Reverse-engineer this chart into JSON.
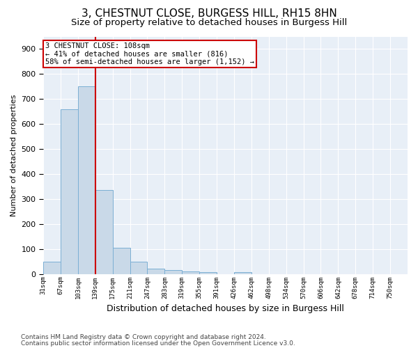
{
  "title1": "3, CHESTNUT CLOSE, BURGESS HILL, RH15 8HN",
  "title2": "Size of property relative to detached houses in Burgess Hill",
  "xlabel": "Distribution of detached houses by size in Burgess Hill",
  "ylabel": "Number of detached properties",
  "footnote1": "Contains HM Land Registry data © Crown copyright and database right 2024.",
  "footnote2": "Contains public sector information licensed under the Open Government Licence v3.0.",
  "bin_labels": [
    "31sqm",
    "67sqm",
    "103sqm",
    "139sqm",
    "175sqm",
    "211sqm",
    "247sqm",
    "283sqm",
    "319sqm",
    "355sqm",
    "391sqm",
    "426sqm",
    "462sqm",
    "498sqm",
    "534sqm",
    "570sqm",
    "606sqm",
    "642sqm",
    "678sqm",
    "714sqm",
    "750sqm"
  ],
  "bar_values": [
    50,
    660,
    750,
    335,
    105,
    50,
    22,
    15,
    10,
    8,
    0,
    8,
    0,
    0,
    0,
    0,
    0,
    0,
    0,
    0,
    0
  ],
  "bar_color": "#c9d9e8",
  "bar_edge_color": "#7bafd4",
  "vline_color": "#cc0000",
  "vline_x": 2.5,
  "annotation_line1": "3 CHESTNUT CLOSE: 108sqm",
  "annotation_line2": "← 41% of detached houses are smaller (816)",
  "annotation_line3": "58% of semi-detached houses are larger (1,152) →",
  "annotation_box_color": "#cc0000",
  "ylim": [
    0,
    950
  ],
  "yticks": [
    0,
    100,
    200,
    300,
    400,
    500,
    600,
    700,
    800,
    900
  ],
  "bg_color": "#e8eff7",
  "grid_color": "#ffffff",
  "title1_fontsize": 11,
  "title2_fontsize": 9.5,
  "ylabel_fontsize": 8,
  "xlabel_fontsize": 9,
  "footnote_fontsize": 6.5
}
